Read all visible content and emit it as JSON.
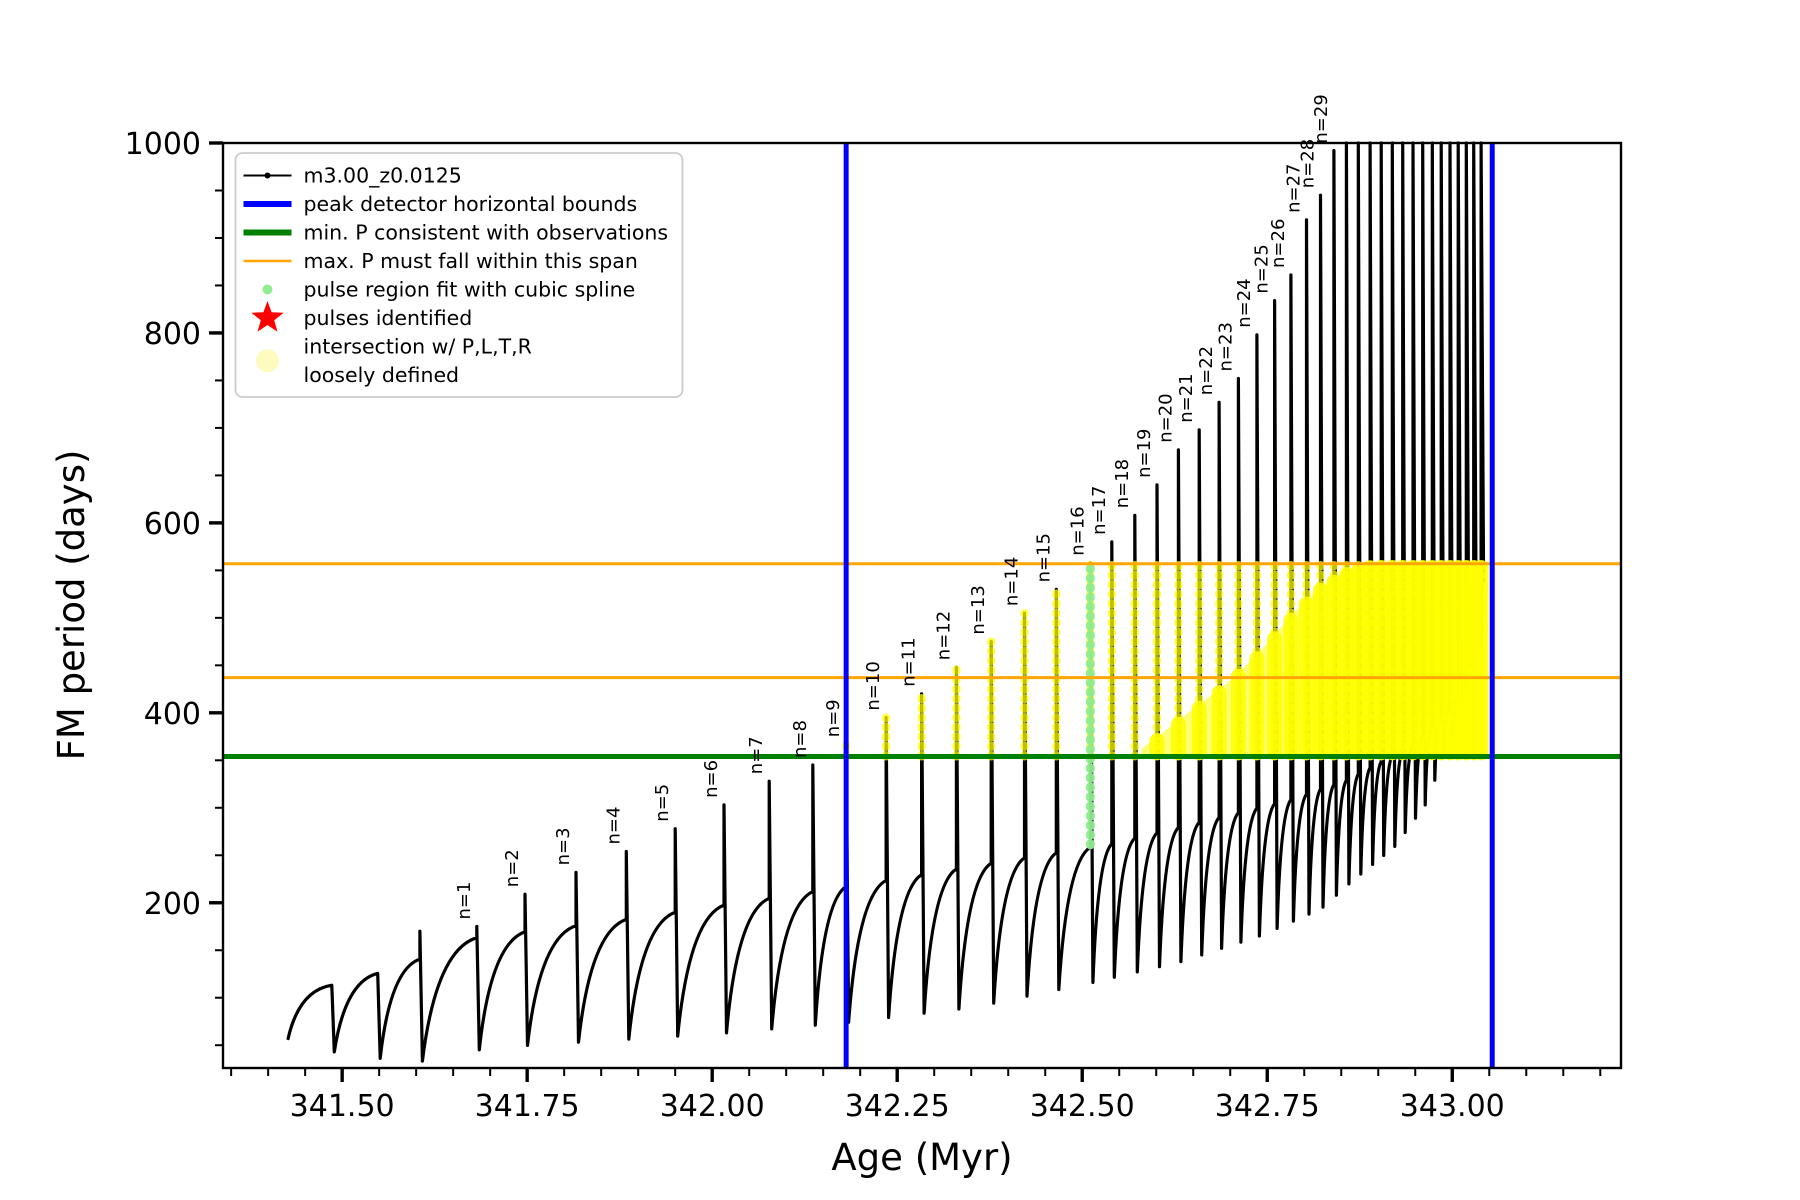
{
  "figure": {
    "background": "#ffffff",
    "plot_border_color": "#000000"
  },
  "chart_data": {
    "type": "line",
    "title": "",
    "xlabel": "Age (Myr)",
    "ylabel": "FM period (days)",
    "xlim": [
      341.339,
      343.228
    ],
    "ylim": [
      26,
      1000
    ],
    "x_major_ticks": [
      341.5,
      341.75,
      342.0,
      342.25,
      342.5,
      342.75,
      343.0
    ],
    "x_major_tick_labels": [
      "341.50",
      "341.75",
      "342.00",
      "342.25",
      "342.50",
      "342.75",
      "343.00"
    ],
    "x_minor_step": 0.05,
    "y_major_ticks": [
      200,
      400,
      600,
      800,
      1000
    ],
    "y_major_tick_labels": [
      "200",
      "400",
      "600",
      "800",
      "1000"
    ],
    "y_minor_step": 50,
    "grid": false,
    "series_name": "m3.00_z0.0125",
    "curve": {
      "color": "#000000",
      "start_age": 341.427,
      "start_value": 57,
      "min_envelope_anchors": [
        [
          341.427,
          57
        ],
        [
          341.49,
          42
        ],
        [
          341.55,
          36
        ],
        [
          341.61,
          33
        ],
        [
          341.68,
          45
        ],
        [
          341.75,
          50
        ],
        [
          342.0,
          62
        ],
        [
          342.18,
          74
        ],
        [
          342.35,
          90
        ],
        [
          342.51,
          116
        ],
        [
          342.63,
          138
        ],
        [
          342.74,
          166
        ],
        [
          342.82,
          194
        ],
        [
          342.86,
          222
        ],
        [
          342.92,
          260
        ],
        [
          342.96,
          303
        ],
        [
          343.0,
          383
        ],
        [
          343.02,
          452
        ],
        [
          343.039,
          538
        ]
      ],
      "shoulder_anchors": [
        [
          341.48,
          112
        ],
        [
          341.55,
          126
        ],
        [
          341.61,
          142
        ],
        [
          341.68,
          163
        ],
        [
          341.88,
          182
        ],
        [
          342.02,
          198
        ],
        [
          342.24,
          224
        ],
        [
          342.42,
          247
        ],
        [
          342.54,
          262
        ],
        [
          342.66,
          285
        ],
        [
          342.78,
          308
        ],
        [
          342.86,
          330
        ],
        [
          342.95,
          368
        ],
        [
          343.01,
          420
        ],
        [
          343.04,
          470
        ]
      ],
      "cycles": [
        {
          "age": 341.486,
          "peak": null,
          "n": null
        },
        {
          "age": 341.548,
          "peak": null,
          "n": null
        },
        {
          "age": 341.605,
          "peak": 170,
          "n": null
        },
        {
          "age": 341.682,
          "peak": 175,
          "n": 1
        },
        {
          "age": 341.747,
          "peak": 209,
          "n": 2
        },
        {
          "age": 341.816,
          "peak": 232,
          "n": 3
        },
        {
          "age": 341.884,
          "peak": 254,
          "n": 4
        },
        {
          "age": 341.95,
          "peak": 278,
          "n": 5
        },
        {
          "age": 342.016,
          "peak": 303,
          "n": 6
        },
        {
          "age": 342.077,
          "peak": 328,
          "n": 7
        },
        {
          "age": 342.136,
          "peak": 345,
          "n": 8
        },
        {
          "age": 342.181,
          "peak": 367,
          "n": 9
        },
        {
          "age": 342.235,
          "peak": 395,
          "n": 10
        },
        {
          "age": 342.283,
          "peak": 420,
          "n": 11
        },
        {
          "age": 342.33,
          "peak": 448,
          "n": 12
        },
        {
          "age": 342.377,
          "peak": 475,
          "n": 13
        },
        {
          "age": 342.422,
          "peak": 505,
          "n": 14
        },
        {
          "age": 342.465,
          "peak": 530,
          "n": 15
        },
        {
          "age": 342.511,
          "peak": 558,
          "n": 16
        },
        {
          "age": 342.54,
          "peak": 580,
          "n": 17
        },
        {
          "age": 342.571,
          "peak": 608,
          "n": 18
        },
        {
          "age": 342.601,
          "peak": 640,
          "n": 19
        },
        {
          "age": 342.63,
          "peak": 677,
          "n": 20
        },
        {
          "age": 342.658,
          "peak": 698,
          "n": 21
        },
        {
          "age": 342.685,
          "peak": 727,
          "n": 22
        },
        {
          "age": 342.711,
          "peak": 752,
          "n": 23
        },
        {
          "age": 342.736,
          "peak": 798,
          "n": 24
        },
        {
          "age": 342.76,
          "peak": 834,
          "n": 25
        },
        {
          "age": 342.782,
          "peak": 861,
          "n": 26
        },
        {
          "age": 342.803,
          "peak": 919,
          "n": 27
        },
        {
          "age": 342.822,
          "peak": 945,
          "n": 28
        },
        {
          "age": 342.84,
          "peak": 992,
          "n": 29
        },
        {
          "age": 342.857,
          "peak": 1020,
          "n": null
        },
        {
          "age": 342.873,
          "peak": 1020,
          "n": null
        },
        {
          "age": 342.889,
          "peak": 1020,
          "n": null
        },
        {
          "age": 342.904,
          "peak": 1020,
          "n": null
        },
        {
          "age": 342.919,
          "peak": 1020,
          "n": null
        },
        {
          "age": 342.933,
          "peak": 1020,
          "n": null
        },
        {
          "age": 342.947,
          "peak": 1020,
          "n": null
        },
        {
          "age": 342.96,
          "peak": 1020,
          "n": null
        },
        {
          "age": 342.973,
          "peak": 1020,
          "n": null
        },
        {
          "age": 342.985,
          "peak": 1020,
          "n": null
        },
        {
          "age": 342.997,
          "peak": 1020,
          "n": null
        },
        {
          "age": 343.008,
          "peak": 1020,
          "n": null
        },
        {
          "age": 343.019,
          "peak": 1020,
          "n": null
        },
        {
          "age": 343.029,
          "peak": 1020,
          "n": null
        },
        {
          "age": 343.039,
          "peak": 1020,
          "n": null
        }
      ]
    },
    "pulse_label_prefix": "n=",
    "overlays": {
      "blue_vlines": {
        "color": "#0000ff",
        "ages": [
          342.181,
          343.054
        ],
        "meaning": "peak detector horizontal bounds"
      },
      "green_hline": {
        "color": "#008000",
        "value": 354,
        "meaning": "min. P consistent with observations"
      },
      "orange_hlines": {
        "color": "#ffa500",
        "values": [
          437,
          557
        ],
        "meaning": "max. P must fall within this span"
      },
      "green_pulse_region": {
        "color": "#90ee90",
        "age": 342.511,
        "v_from": 261,
        "v_to": 561
      },
      "yellow_intersection": {
        "color": "#ffff00",
        "dot_columns": {
          "age_min": 342.17,
          "age_max": 343.046,
          "v_min": 354,
          "v_max": 557
        },
        "wedge_top_anchors": [
          [
            342.58,
            362
          ],
          [
            342.62,
            386
          ],
          [
            342.66,
            410
          ],
          [
            342.7,
            434
          ],
          [
            342.74,
            464
          ],
          [
            342.78,
            500
          ],
          [
            342.82,
            532
          ],
          [
            342.86,
            551
          ],
          [
            342.89,
            557
          ],
          [
            343.046,
            557
          ]
        ],
        "wedge_base": 354
      }
    },
    "legend": {
      "position": "upper left",
      "entries": [
        {
          "label": "m3.00_z0.0125",
          "type": "line-dot",
          "color": "#000000"
        },
        {
          "label": "peak detector horizontal bounds",
          "type": "line-thick",
          "color": "#0000ff"
        },
        {
          "label": "min. P consistent with observations",
          "type": "line-thick",
          "color": "#008000"
        },
        {
          "label": "max. P must fall within this span",
          "type": "line",
          "color": "#ffa500"
        },
        {
          "label": "pulse region fit with cubic spline",
          "type": "dot-small",
          "color": "#90ee90"
        },
        {
          "label": "pulses identified",
          "type": "star",
          "color": "#ff0000"
        },
        {
          "label": "intersection w/ P,L,T,R",
          "label2": "loosely defined",
          "type": "dot-large",
          "color": "#fdfbbd"
        }
      ]
    }
  }
}
